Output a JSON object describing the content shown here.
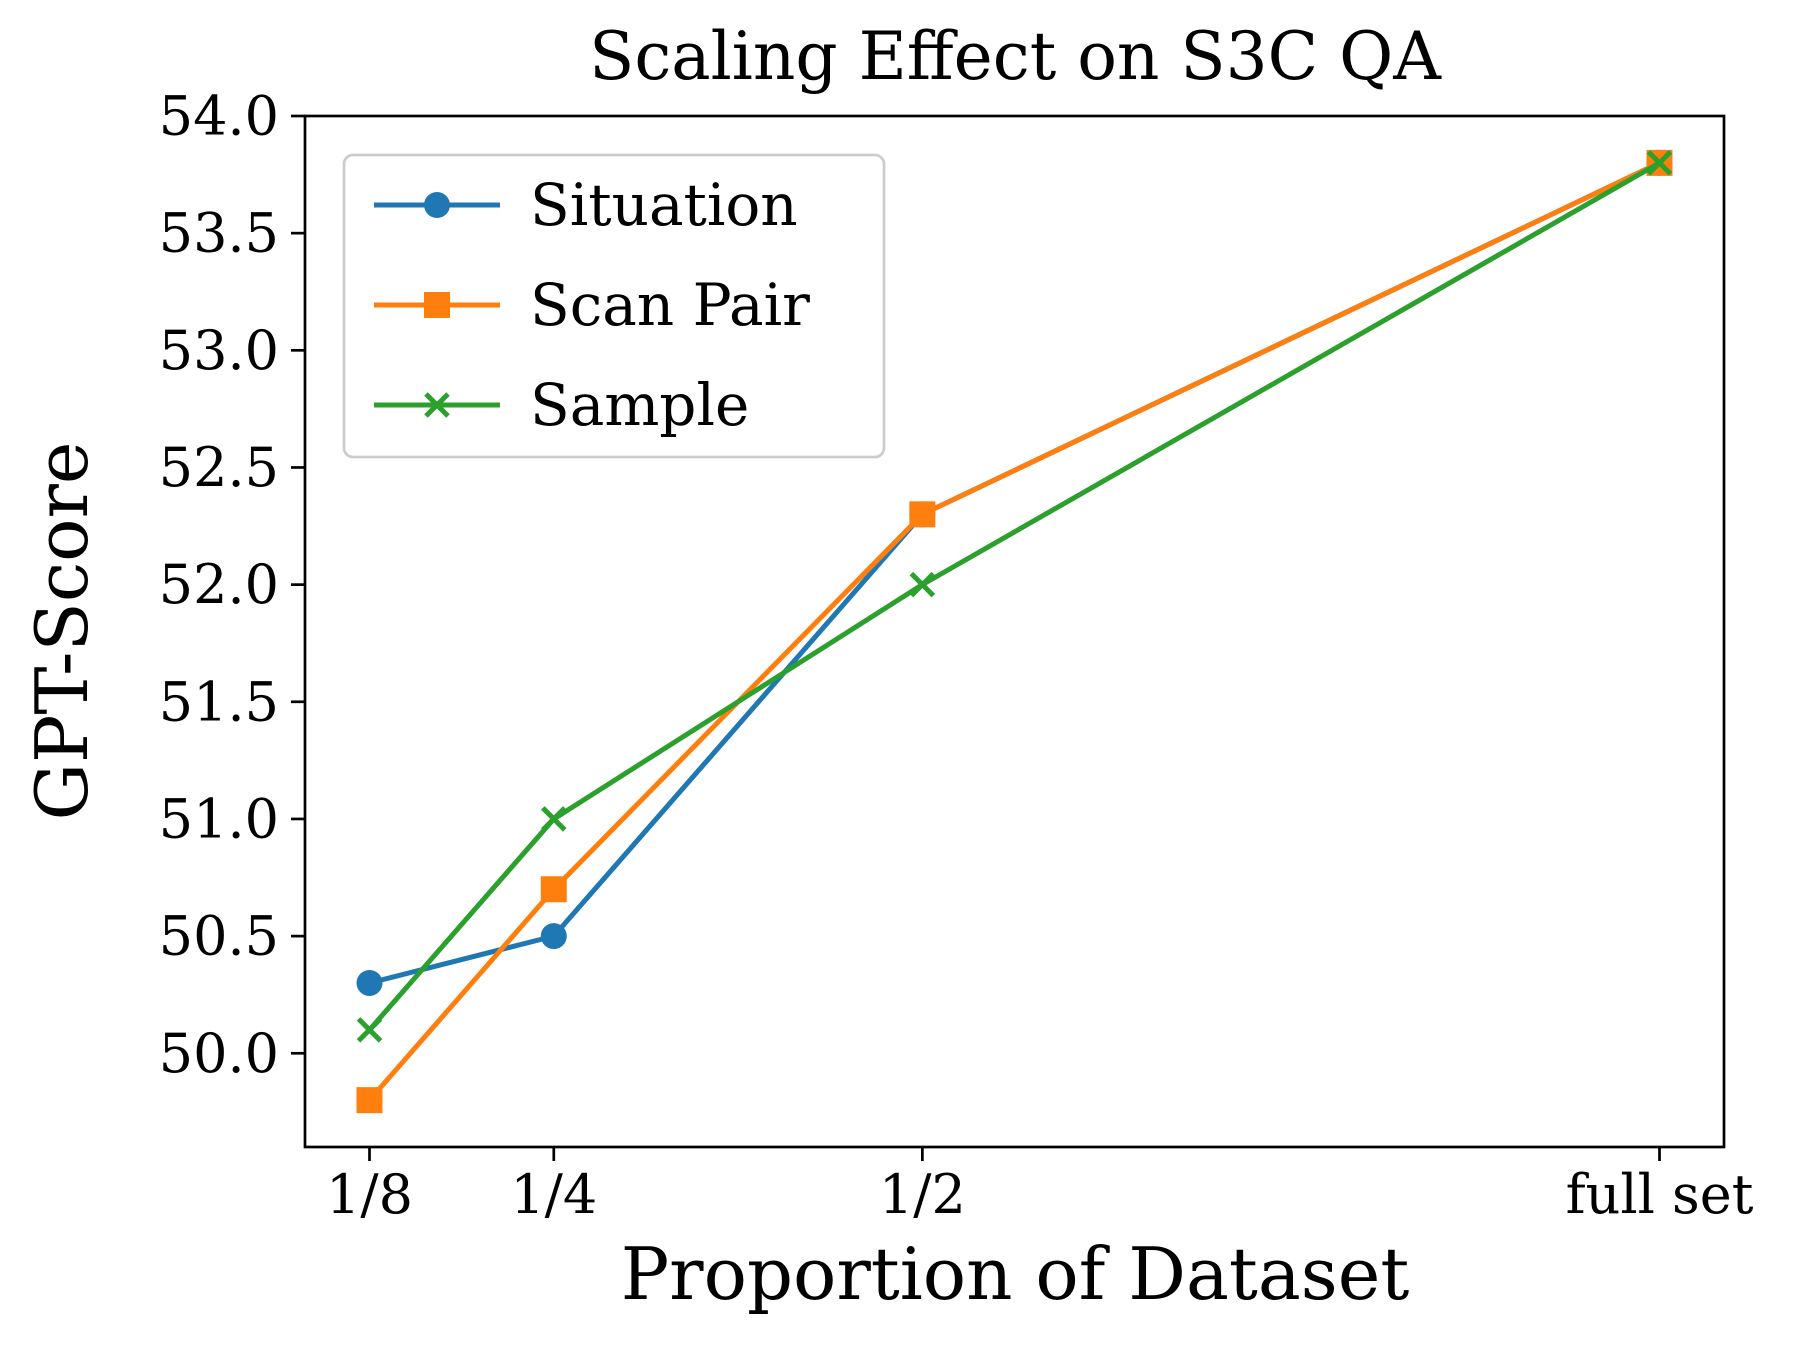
{
  "chart_data": {
    "type": "line",
    "title": "Scaling Effect on S3C QA",
    "xlabel": "Proportion of Dataset",
    "ylabel": "GPT-Score",
    "x": [
      0.125,
      0.25,
      0.5,
      1.0
    ],
    "x_tick_labels": [
      "1/8",
      "1/4",
      "1/2",
      "full set"
    ],
    "series": [
      {
        "name": "Situation",
        "color": "#1f77b4",
        "marker": "circle",
        "values": [
          50.3,
          50.5,
          52.3,
          53.8
        ]
      },
      {
        "name": "Scan Pair",
        "color": "#ff7f0e",
        "marker": "square",
        "values": [
          49.8,
          50.7,
          52.3,
          53.8
        ]
      },
      {
        "name": "Sample",
        "color": "#2ca02c",
        "marker": "x",
        "values": [
          50.1,
          51.0,
          52.0,
          53.8
        ]
      }
    ],
    "xlim": [
      0.08125,
      1.04375
    ],
    "ylim": [
      49.6,
      54.0
    ],
    "yticks": [
      50.0,
      50.5,
      51.0,
      51.5,
      52.0,
      52.5,
      53.0,
      53.5,
      54.0
    ],
    "grid": false,
    "legend_position": "upper left",
    "axis_color": "#000000",
    "legend_border_color": "#cccccc",
    "legend_background": "#ffffff"
  }
}
